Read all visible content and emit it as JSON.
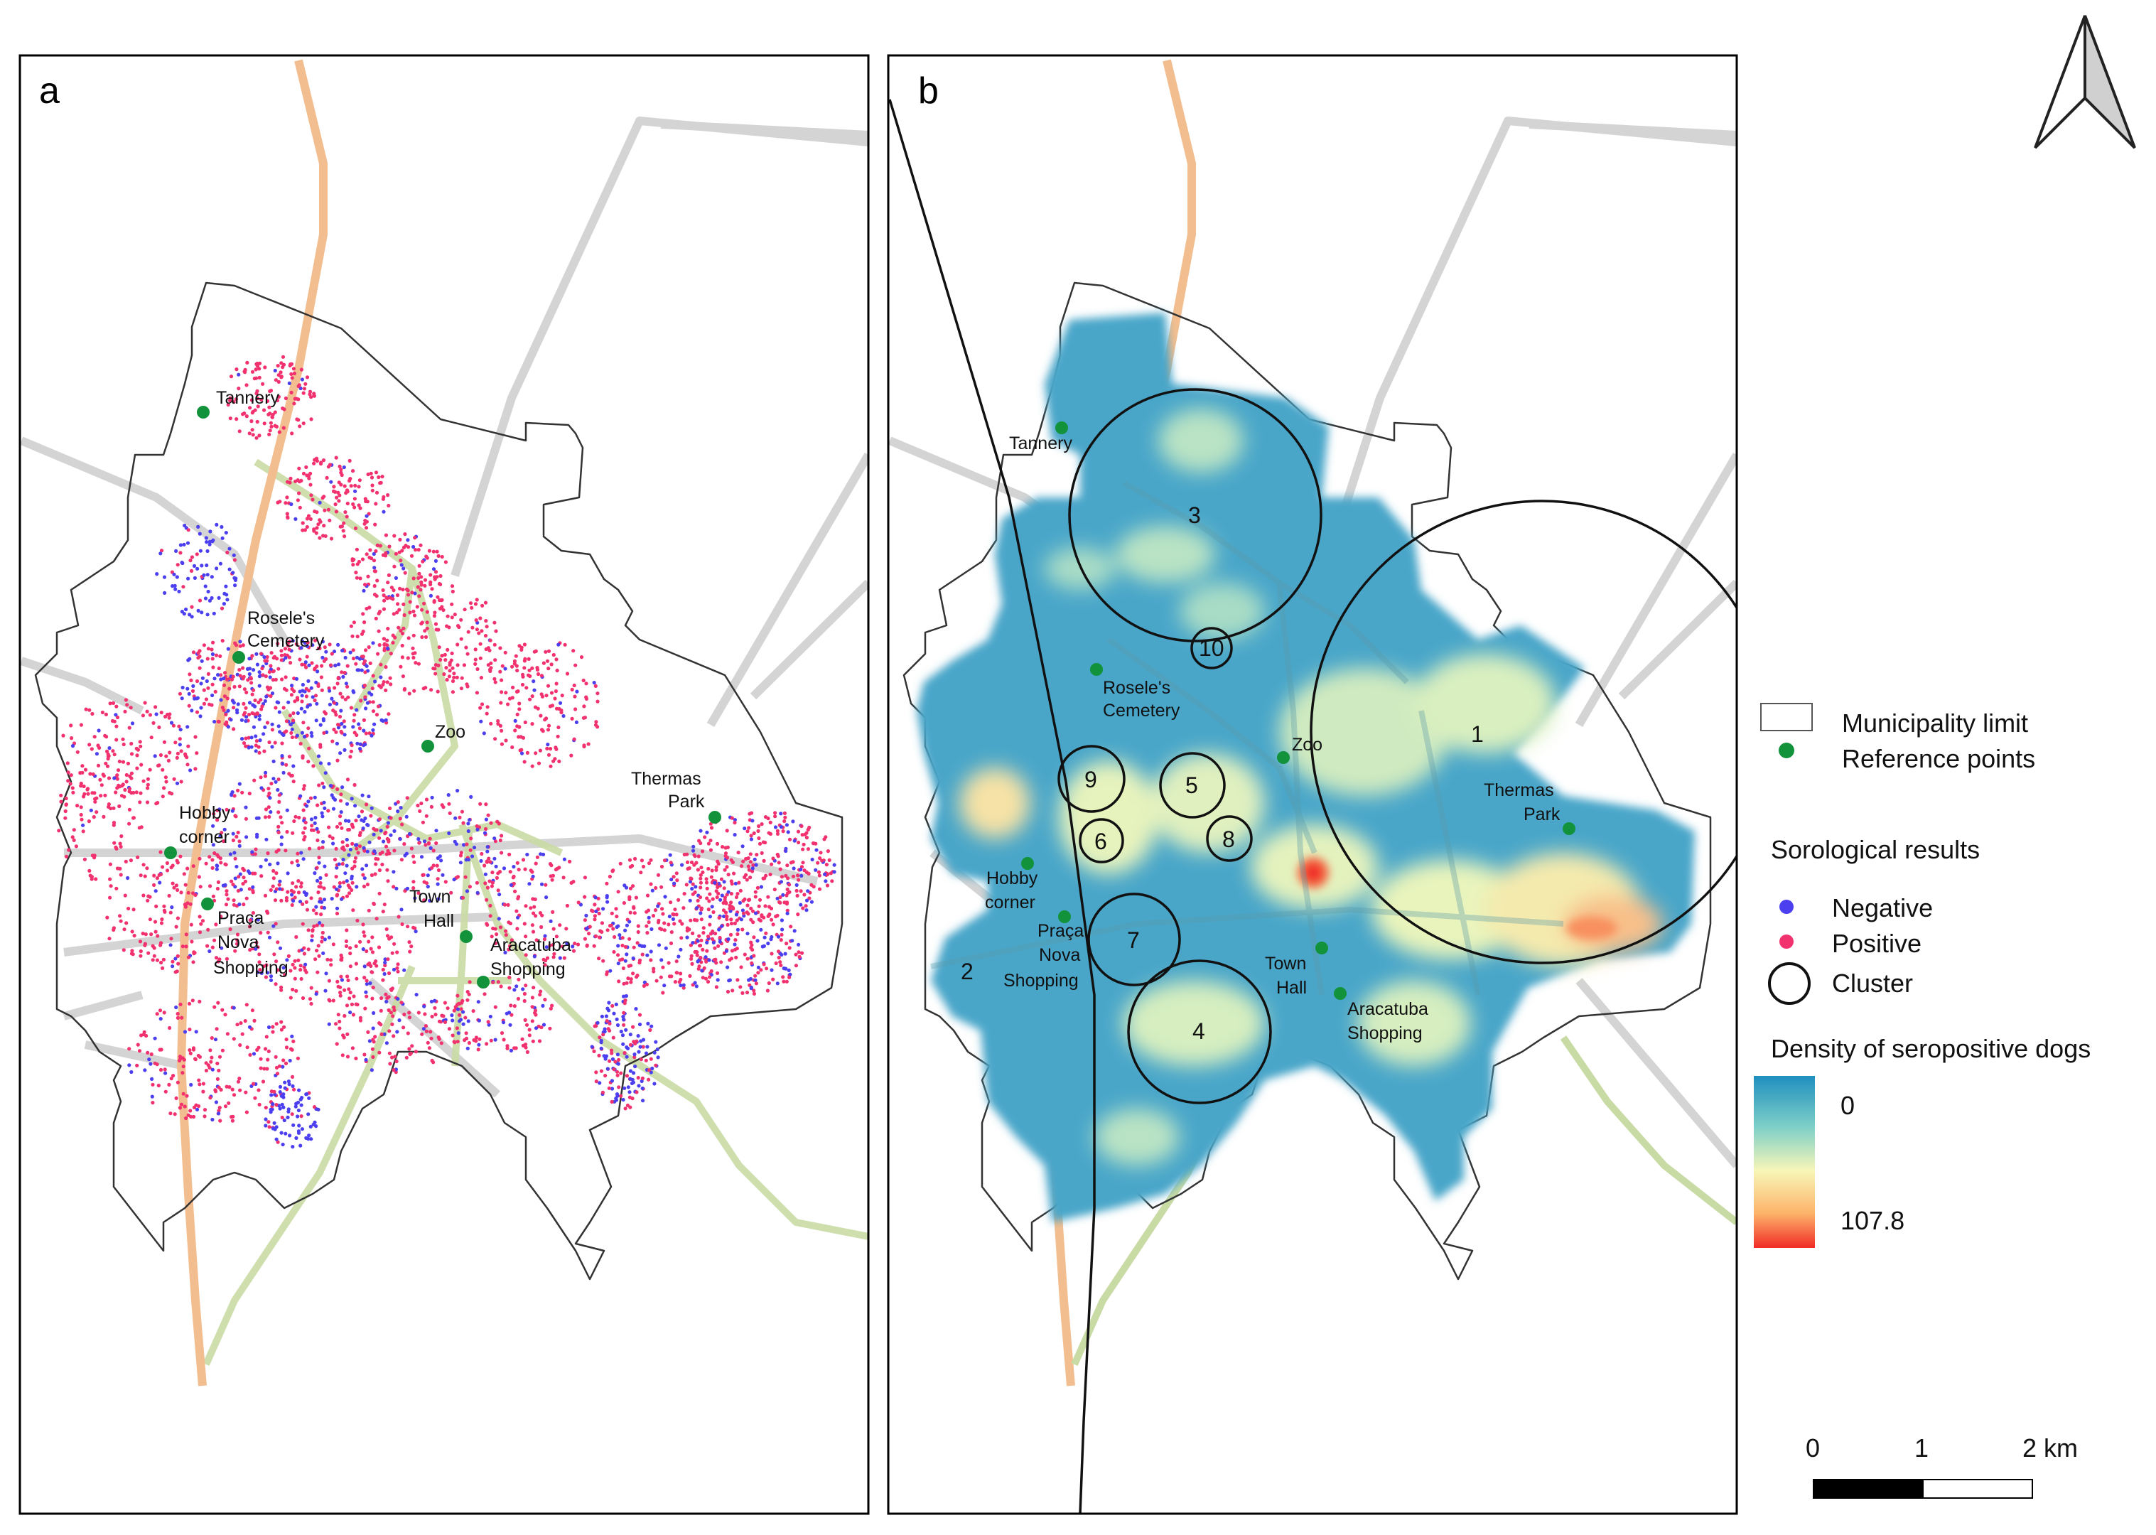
{
  "panels": [
    {
      "id": "a",
      "label": "a"
    },
    {
      "id": "b",
      "label": "b"
    }
  ],
  "reference_points": {
    "tannery": "Tannery",
    "rosele_line1": "Rosele's",
    "rosele_line2": "Cemetery",
    "zoo": "Zoo",
    "thermas_line1": "Thermas",
    "thermas_line2": "Park",
    "hobby_line1": "Hobby",
    "hobby_line2": "corner",
    "praca_line1": "Praça",
    "praca_line2": "Nova",
    "praca_line3": "Shopping",
    "townhall_line1": "Town",
    "townhall_line2": "Hall",
    "aracatuba_line1": "Aracatuba",
    "aracatuba_line2": "Shopping"
  },
  "clusters": [
    "1",
    "2",
    "3",
    "4",
    "5",
    "6",
    "7",
    "8",
    "9",
    "10"
  ],
  "legend": {
    "municipality_limit": "Municipality limit",
    "reference_points": "Reference points",
    "sorological_title": "Sorological results",
    "negative": "Negative",
    "positive": "Positive",
    "cluster": "Cluster",
    "density_title": "Density of seropositive dogs",
    "density_min": "0",
    "density_max": "107.8"
  },
  "scale_bar": {
    "ticks": [
      "0",
      "1",
      "2 km"
    ]
  },
  "colors": {
    "negative": "#4b3ff0",
    "positive": "#f2316f",
    "reference": "#12923a",
    "ramp": [
      "#1f8fbf",
      "#7fd0c8",
      "#f7f6b8",
      "#fdb36a",
      "#f02b26"
    ]
  }
}
